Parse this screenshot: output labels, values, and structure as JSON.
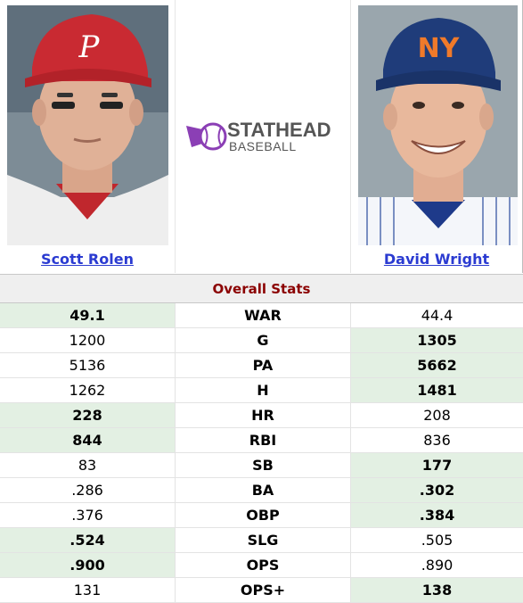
{
  "players": {
    "left": {
      "name": "Scott Rolen"
    },
    "right": {
      "name": "David Wright"
    }
  },
  "logo": {
    "line1": "STATHEAD",
    "line2": "BASEBALL"
  },
  "section": {
    "title": "Overall Stats"
  },
  "stats": [
    {
      "stat": "WAR",
      "left": "49.1",
      "right": "44.4",
      "winner": "left"
    },
    {
      "stat": "G",
      "left": "1200",
      "right": "1305",
      "winner": "right"
    },
    {
      "stat": "PA",
      "left": "5136",
      "right": "5662",
      "winner": "right"
    },
    {
      "stat": "H",
      "left": "1262",
      "right": "1481",
      "winner": "right"
    },
    {
      "stat": "HR",
      "left": "228",
      "right": "208",
      "winner": "left"
    },
    {
      "stat": "RBI",
      "left": "844",
      "right": "836",
      "winner": "left"
    },
    {
      "stat": "SB",
      "left": "83",
      "right": "177",
      "winner": "right"
    },
    {
      "stat": "BA",
      "left": ".286",
      "right": ".302",
      "winner": "right"
    },
    {
      "stat": "OBP",
      "left": ".376",
      "right": ".384",
      "winner": "right"
    },
    {
      "stat": "SLG",
      "left": ".524",
      "right": ".505",
      "winner": "left"
    },
    {
      "stat": "OPS",
      "left": ".900",
      "right": ".890",
      "winner": "left"
    },
    {
      "stat": "OPS+",
      "left": "131",
      "right": "138",
      "winner": "right"
    }
  ],
  "colors": {
    "winner_bg": "#e3f0e3",
    "link": "#2b3bd1",
    "section_title": "#8b0000",
    "logo_purple": "#8b3fb5"
  }
}
